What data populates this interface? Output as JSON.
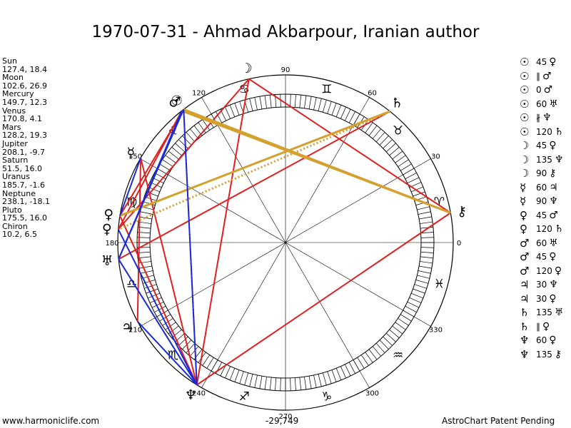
{
  "title": "1970-07-31 - Ahmad Akbarpour, Iranian author",
  "planets": [
    {
      "name": "Sun",
      "values": "127.4, 18.4"
    },
    {
      "name": "Moon",
      "values": "102.6, 26.9"
    },
    {
      "name": "Mercury",
      "values": "149.7, 12.3"
    },
    {
      "name": "Venus",
      "values": "170.8, 4.1"
    },
    {
      "name": "Mars",
      "values": "128.2, 19.3"
    },
    {
      "name": "Jupiter",
      "values": "208.1, -9.7"
    },
    {
      "name": "Saturn",
      "values": "51.5, 16.0"
    },
    {
      "name": "Uranus",
      "values": "185.7, -1.6"
    },
    {
      "name": "Neptune",
      "values": "238.1, -18.1"
    },
    {
      "name": "Pluto",
      "values": "175.5, 16.0"
    },
    {
      "name": "Chiron",
      "values": "10.2, 6.5"
    }
  ],
  "aspects": [
    {
      "g1": "☉",
      "angle": "45",
      "g2": "♀"
    },
    {
      "g1": "☉",
      "angle": "∥",
      "g2": "♂"
    },
    {
      "g1": "☉",
      "angle": "0",
      "g2": "♂"
    },
    {
      "g1": "☉",
      "angle": "60",
      "g2": "♅"
    },
    {
      "g1": "☉",
      "angle": "∦",
      "g2": "♆"
    },
    {
      "g1": "☉",
      "angle": "120",
      "g2": "♄"
    },
    {
      "g1": "☽",
      "angle": "45",
      "g2": "♀"
    },
    {
      "g1": "☽",
      "angle": "135",
      "g2": "♆"
    },
    {
      "g1": "☽",
      "angle": "90",
      "g2": "⚷"
    },
    {
      "g1": "☿",
      "angle": "60",
      "g2": "♃"
    },
    {
      "g1": "☿",
      "angle": "90",
      "g2": "♆"
    },
    {
      "g1": "♀",
      "angle": "45",
      "g2": "♂"
    },
    {
      "g1": "♀",
      "angle": "120",
      "g2": "♄"
    },
    {
      "g1": "♂",
      "angle": "60",
      "g2": "♅"
    },
    {
      "g1": "♂",
      "angle": "45",
      "g2": "♀"
    },
    {
      "g1": "♂",
      "angle": "120",
      "g2": "♀"
    },
    {
      "g1": "♃",
      "angle": "30",
      "g2": "♆"
    },
    {
      "g1": "♃",
      "angle": "30",
      "g2": "♀"
    },
    {
      "g1": "♄",
      "angle": "135",
      "g2": "♅"
    },
    {
      "g1": "♄",
      "angle": "∥",
      "g2": "♀"
    },
    {
      "g1": "♆",
      "angle": "60",
      "g2": "♀"
    },
    {
      "g1": "♆",
      "angle": "135",
      "g2": "⚷"
    }
  ],
  "wheel": {
    "degree_labels": [
      "0",
      "30",
      "60",
      "90",
      "120",
      "150",
      "180",
      "210",
      "240",
      "270",
      "300",
      "330"
    ],
    "zodiac_glyphs": [
      "♈",
      "♉",
      "♊",
      "♋",
      "♌",
      "♍",
      "♎",
      "♏",
      "♐",
      "♑",
      "♒",
      "♓"
    ],
    "planet_glyphs": [
      {
        "key": "sun",
        "glyph": "☉",
        "lon": 127.4
      },
      {
        "key": "moon",
        "glyph": "☽",
        "lon": 102.6
      },
      {
        "key": "mercury",
        "glyph": "☿",
        "lon": 149.7
      },
      {
        "key": "venus",
        "glyph": "♀",
        "lon": 170.8
      },
      {
        "key": "mars",
        "glyph": "♂",
        "lon": 128.2
      },
      {
        "key": "jupiter",
        "glyph": "♃",
        "lon": 208.1
      },
      {
        "key": "saturn",
        "glyph": "♄",
        "lon": 51.5
      },
      {
        "key": "uranus",
        "glyph": "♅",
        "lon": 185.7
      },
      {
        "key": "neptune",
        "glyph": "♆",
        "lon": 238.1
      },
      {
        "key": "pluto",
        "glyph": "♀",
        "lon": 175.5
      },
      {
        "key": "chiron",
        "glyph": "⚷",
        "lon": 10.2
      }
    ],
    "aspect_lines": [
      {
        "from": 102.6,
        "to": 175.5,
        "color": "#e02020",
        "style": "solid"
      },
      {
        "from": 102.6,
        "to": 238.1,
        "color": "#e02020",
        "style": "solid"
      },
      {
        "from": 102.6,
        "to": 10.2,
        "color": "#e02020",
        "style": "solid"
      },
      {
        "from": 51.5,
        "to": 170.8,
        "color": "#e02020",
        "style": "solid"
      },
      {
        "from": 51.5,
        "to": 185.7,
        "color": "#e02020",
        "style": "solid"
      },
      {
        "from": 127.4,
        "to": 238.1,
        "color": "#e02020",
        "style": "dotted"
      },
      {
        "from": 149.7,
        "to": 208.1,
        "color": "#e02020",
        "style": "solid"
      },
      {
        "from": 149.7,
        "to": 238.1,
        "color": "#e02020",
        "style": "solid"
      },
      {
        "from": 10.2,
        "to": 238.1,
        "color": "#e02020",
        "style": "solid"
      },
      {
        "from": 170.8,
        "to": 238.1,
        "color": "#e02020",
        "style": "solid"
      },
      {
        "from": 128.2,
        "to": 175.5,
        "color": "#e02020",
        "style": "solid"
      },
      {
        "from": 127.4,
        "to": 170.8,
        "color": "#e02020",
        "style": "solid"
      },
      {
        "from": 127.4,
        "to": 10.2,
        "color": "#d4a030",
        "style": "solid"
      },
      {
        "from": 128.2,
        "to": 10.2,
        "color": "#d4a030",
        "style": "solid"
      },
      {
        "from": 51.5,
        "to": 175.5,
        "color": "#d4a030",
        "style": "dotted"
      },
      {
        "from": 51.5,
        "to": 170.8,
        "color": "#d4a030",
        "style": "solid"
      },
      {
        "from": 127.4,
        "to": 185.7,
        "color": "#1a2ad8",
        "style": "solid"
      },
      {
        "from": 128.2,
        "to": 185.7,
        "color": "#1a2ad8",
        "style": "solid"
      },
      {
        "from": 175.5,
        "to": 238.1,
        "color": "#1a2ad8",
        "style": "solid"
      },
      {
        "from": 185.7,
        "to": 238.1,
        "color": "#1a2ad8",
        "style": "solid"
      },
      {
        "from": 208.1,
        "to": 238.1,
        "color": "#1a2ad8",
        "style": "solid"
      },
      {
        "from": 127.4,
        "to": 238.1,
        "color": "#1a2ad8",
        "style": "solid"
      },
      {
        "from": 149.7,
        "to": 170.8,
        "color": "#1a2ad8",
        "style": "solid"
      }
    ]
  },
  "footer": {
    "left": "www.harmoniclife.com",
    "center": "-29,749",
    "right": "AstroChart Patent Pending"
  }
}
